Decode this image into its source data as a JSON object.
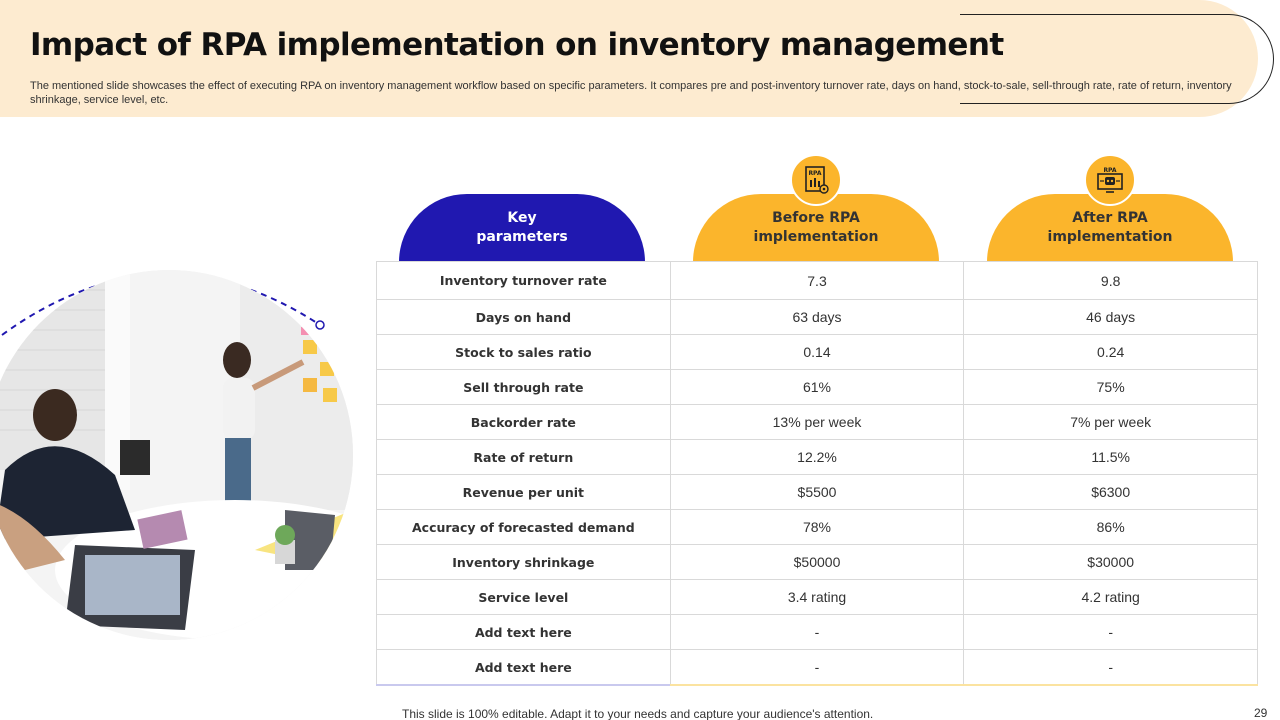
{
  "header": {
    "title": "Impact of RPA implementation on inventory management",
    "subtitle": "The mentioned slide showcases the effect of executing RPA on inventory management workflow based on specific parameters. It compares pre and post-inventory turnover rate, days on hand, stock-to-sale, sell-through rate, rate of return, inventory shrinkage, service level, etc."
  },
  "table": {
    "headers": {
      "key": [
        "Key",
        "parameters"
      ],
      "before": [
        "Before RPA",
        "implementation"
      ],
      "after": [
        "After RPA",
        "implementation"
      ]
    },
    "icons": {
      "before": "rpa-document-gear-icon",
      "after": "rpa-robot-monitor-icon"
    },
    "rows": [
      {
        "param": "Inventory turnover rate",
        "before": "7.3",
        "after": "9.8"
      },
      {
        "param": "Days on hand",
        "before": "63 days",
        "after": "46 days"
      },
      {
        "param": "Stock to sales ratio",
        "before": "0.14",
        "after": "0.24"
      },
      {
        "param": "Sell through rate",
        "before": "61%",
        "after": "75%"
      },
      {
        "param": "Backorder rate",
        "before": "13% per week",
        "after": "7% per week"
      },
      {
        "param": "Rate of return",
        "before": "12.2%",
        "after": "11.5%"
      },
      {
        "param": "Revenue per unit",
        "before": "$5500",
        "after": "$6300"
      },
      {
        "param": "Accuracy of forecasted demand",
        "before": "78%",
        "after": "86%"
      },
      {
        "param": "Inventory shrinkage",
        "before": "$50000",
        "after": "$30000"
      },
      {
        "param": "Service level",
        "before": "3.4 rating",
        "after": "4.2 rating"
      },
      {
        "param": "Add text here",
        "before": "-",
        "after": "-"
      },
      {
        "param": "Add text here",
        "before": "-",
        "after": "-"
      }
    ]
  },
  "icon_labels": {
    "rpa": "RPA"
  },
  "footer": {
    "note": "This slide is 100% editable. Adapt it to your needs and capture your audience's attention.",
    "page_number": "29"
  },
  "colors": {
    "accent_yellow": "#fbb52c",
    "accent_blue": "#2018b0",
    "header_bg": "#fdebd0"
  }
}
